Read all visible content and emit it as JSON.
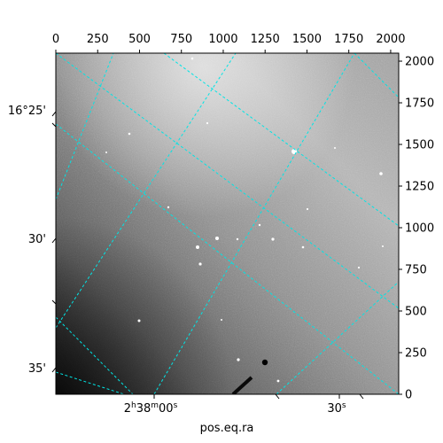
{
  "chart_data": {
    "type": "image",
    "colormap": "gray",
    "grid_color": "#00e5e5",
    "xlim": [
      0,
      2048
    ],
    "ylim": [
      0,
      2048
    ],
    "top_ticks": [
      0,
      250,
      500,
      750,
      1000,
      1250,
      1500,
      1750,
      2000
    ],
    "right_ticks": [
      0,
      250,
      500,
      750,
      1000,
      1250,
      1500,
      1750,
      2000
    ],
    "bottom_ticks": [
      {
        "pre": "2",
        "h": "h",
        "mid": "38",
        "m": "m",
        "sec": "00",
        "s": "s"
      },
      {
        "pre": "30",
        "s": "s"
      }
    ],
    "left_ticks": [
      "16°25'",
      "30'",
      "35'"
    ],
    "xlabel": "pos.eq.ra"
  }
}
